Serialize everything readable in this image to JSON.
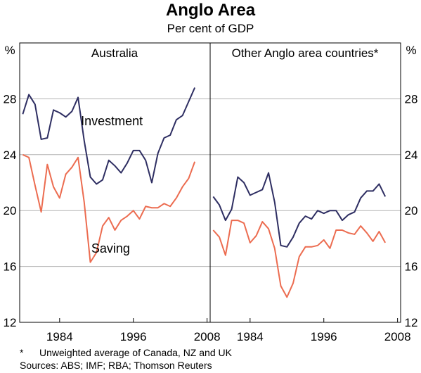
{
  "title": "Anglo Area",
  "subtitle": "Per cent of GDP",
  "footnote": {
    "marker": "*",
    "text": "Unweighted average of Canada, NZ and UK"
  },
  "sources": "Sources: ABS; IMF; RBA; Thomson Reuters",
  "colors": {
    "investment": "#2e2e62",
    "saving": "#ec6c50",
    "grid": "#b3b3b3",
    "frame": "#000000"
  },
  "chart_data": [
    {
      "type": "line",
      "panel_title": "Australia",
      "ylabel_left": "%",
      "ylabel_right": "%",
      "ylim": [
        12,
        32
      ],
      "yticks": [
        12,
        16,
        20,
        24,
        28
      ],
      "xlim": [
        1977.5,
        2008.5
      ],
      "xticks": [
        1984,
        1996,
        2008
      ],
      "grid": true,
      "series": [
        {
          "name": "Investment",
          "color": "#2e2e62",
          "x": [
            1978,
            1979,
            1980,
            1981,
            1982,
            1983,
            1984,
            1985,
            1986,
            1987,
            1988,
            1989,
            1990,
            1991,
            1992,
            1993,
            1994,
            1995,
            1996,
            1997,
            1998,
            1999,
            2000,
            2001,
            2002,
            2003,
            2004,
            2005,
            2006,
            2007,
            2008
          ],
          "values": [
            26.9,
            28.3,
            27.6,
            25.1,
            25.2,
            27.2,
            27.0,
            26.7,
            27.1,
            28.1,
            25.0,
            22.4,
            21.9,
            22.2,
            23.6,
            23.2,
            22.7,
            23.4,
            24.3,
            24.3,
            23.6,
            22.0,
            24.1,
            25.2,
            25.4,
            26.5,
            26.8,
            27.8,
            28.8,
            null,
            null
          ]
        },
        {
          "name": "Saving",
          "color": "#ec6c50",
          "x": [
            1978,
            1979,
            1980,
            1981,
            1982,
            1983,
            1984,
            1985,
            1986,
            1987,
            1988,
            1989,
            1990,
            1991,
            1992,
            1993,
            1994,
            1995,
            1996,
            1997,
            1998,
            1999,
            2000,
            2001,
            2002,
            2003,
            2004,
            2005,
            2006,
            2007,
            2008
          ],
          "values": [
            24.0,
            23.8,
            21.8,
            19.9,
            23.3,
            21.7,
            20.9,
            22.6,
            23.1,
            23.8,
            20.6,
            16.3,
            17.0,
            18.9,
            19.5,
            18.6,
            19.3,
            19.6,
            20.0,
            19.4,
            20.3,
            20.2,
            20.2,
            20.5,
            20.3,
            20.9,
            21.7,
            22.3,
            23.5,
            null,
            null
          ]
        }
      ],
      "labels": [
        {
          "text": "Investment",
          "x": 1992.5,
          "y": 26.1,
          "series": "Investment"
        },
        {
          "text": "Saving",
          "x": 1992.3,
          "y": 17.0,
          "series": "Saving"
        }
      ]
    },
    {
      "type": "line",
      "panel_title": "Other Anglo area countries*",
      "ylim": [
        12,
        32
      ],
      "yticks": [
        12,
        16,
        20,
        24,
        28
      ],
      "xlim": [
        1977.5,
        2008.5
      ],
      "xticks": [
        1984,
        1996,
        2008
      ],
      "grid": true,
      "series": [
        {
          "name": "Investment",
          "color": "#2e2e62",
          "x": [
            1978,
            1979,
            1980,
            1981,
            1982,
            1983,
            1984,
            1985,
            1986,
            1987,
            1988,
            1989,
            1990,
            1991,
            1992,
            1993,
            1994,
            1995,
            1996,
            1997,
            1998,
            1999,
            2000,
            2001,
            2002,
            2003,
            2004,
            2005,
            2006,
            2007,
            2008
          ],
          "values": [
            21.0,
            20.4,
            19.3,
            20.1,
            22.4,
            22.0,
            21.1,
            21.3,
            21.5,
            22.7,
            20.6,
            17.5,
            17.4,
            18.1,
            19.1,
            19.6,
            19.4,
            20.0,
            19.8,
            20.0,
            20.0,
            19.3,
            19.7,
            19.9,
            20.9,
            21.4,
            21.4,
            21.9,
            21.0,
            null,
            null
          ]
        },
        {
          "name": "Saving",
          "color": "#ec6c50",
          "x": [
            1978,
            1979,
            1980,
            1981,
            1982,
            1983,
            1984,
            1985,
            1986,
            1987,
            1988,
            1989,
            1990,
            1991,
            1992,
            1993,
            1994,
            1995,
            1996,
            1997,
            1998,
            1999,
            2000,
            2001,
            2002,
            2003,
            2004,
            2005,
            2006,
            2007,
            2008
          ],
          "values": [
            18.6,
            18.1,
            16.8,
            19.3,
            19.3,
            19.1,
            17.7,
            18.2,
            19.2,
            18.7,
            17.3,
            14.6,
            13.8,
            14.8,
            16.7,
            17.4,
            17.4,
            17.5,
            17.9,
            17.3,
            18.6,
            18.6,
            18.4,
            18.3,
            18.9,
            18.4,
            17.8,
            18.5,
            17.7,
            null,
            null
          ]
        }
      ]
    }
  ]
}
